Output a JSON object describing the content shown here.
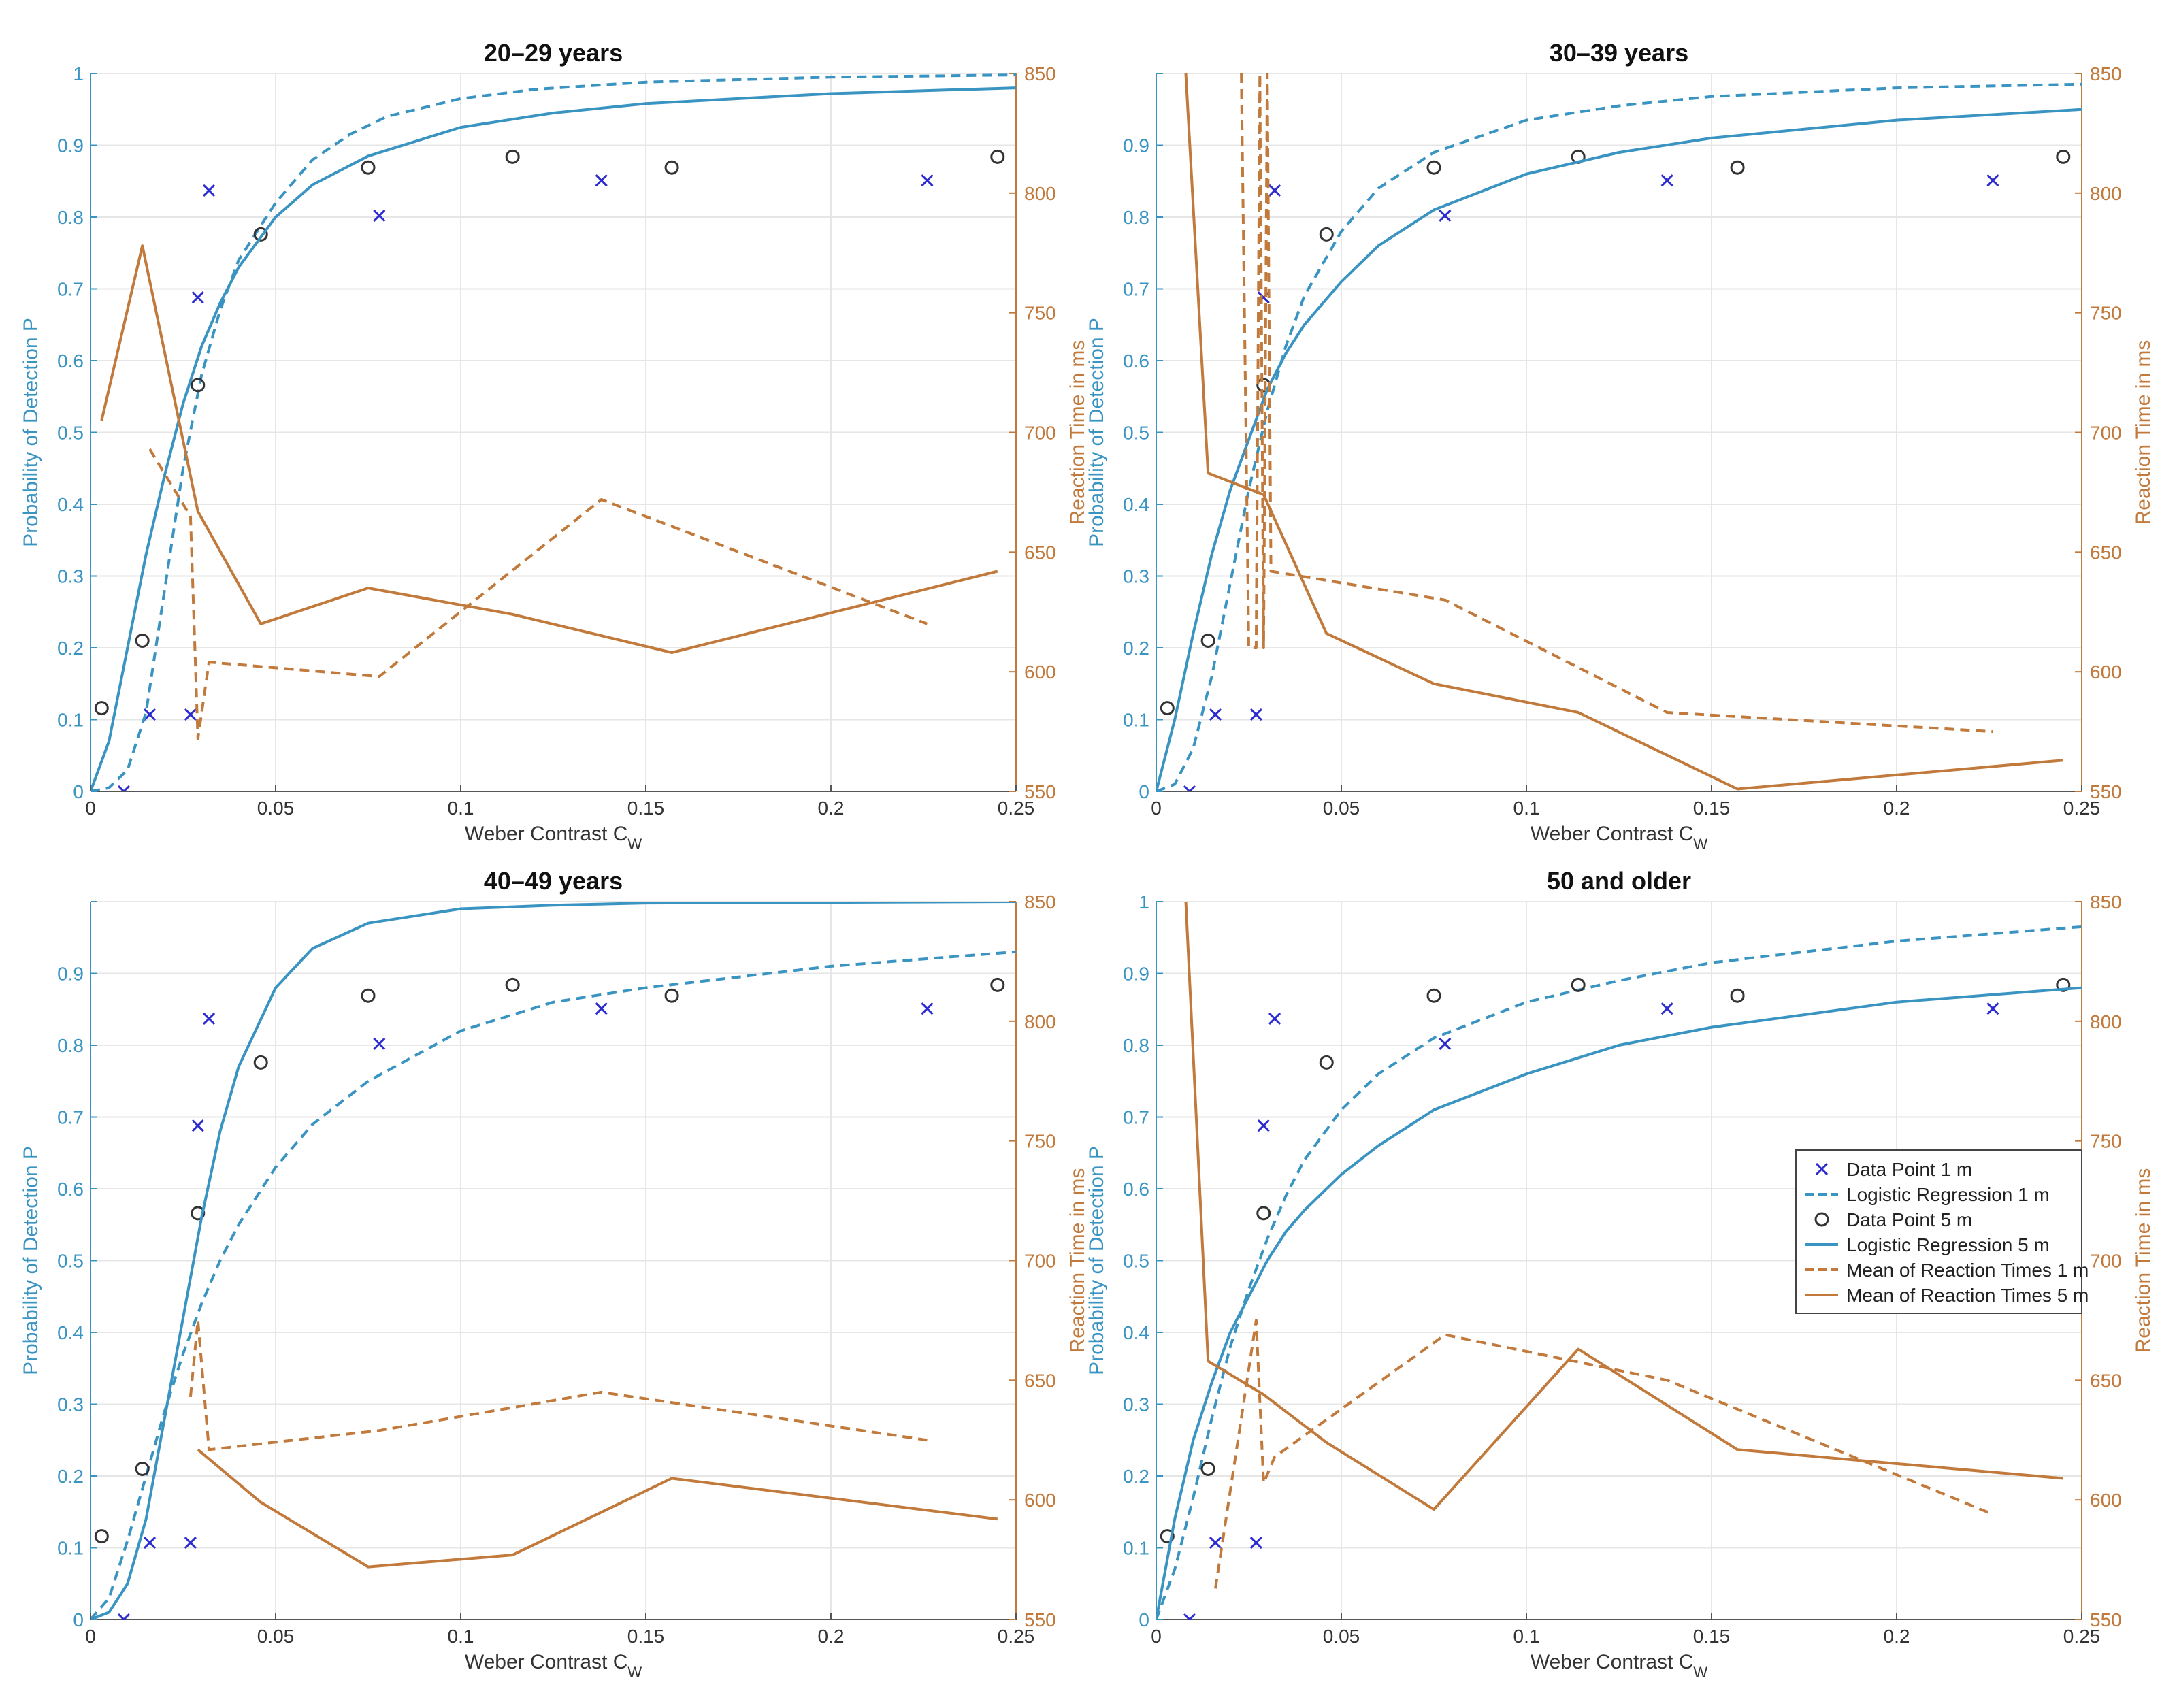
{
  "colors": {
    "prob": "#3a94c2",
    "rt": "#c17a3c",
    "marker1": "#2b2bd0",
    "marker5": "#333333",
    "grid": "#e6e6e6",
    "axis": "#555555"
  },
  "chart_data": [
    {
      "type": "line",
      "title": "20–29 years",
      "xlabel": "Weber Contrast C",
      "xlabel_sub": "W",
      "ylabel": "Probability of Detection P",
      "ylabel_right": "Reaction Time in ms",
      "xlim": [
        0,
        0.25
      ],
      "ylim": [
        0,
        1
      ],
      "ylim_right": [
        550,
        850
      ],
      "x_ticks": [
        "0",
        "0.05",
        "0.1",
        "0.15",
        "0.2",
        "0.25"
      ],
      "y_ticks": [
        "0",
        "0.1",
        "0.2",
        "0.3",
        "0.4",
        "0.5",
        "0.6",
        "0.7",
        "0.8",
        "0.9",
        "1"
      ],
      "y_ticks_right": [
        "550",
        "600",
        "650",
        "700",
        "750",
        "800",
        "850"
      ],
      "series": [
        {
          "name": "Data Point 1 m",
          "kind": "scatter-x",
          "axis": "left",
          "x": [
            0.009,
            0.016,
            0.027,
            0.029,
            0.032,
            0.078,
            0.138,
            0.226
          ],
          "y": [
            0.0,
            0.107,
            0.107,
            0.688,
            0.837,
            0.802,
            0.851,
            0.851
          ]
        },
        {
          "name": "Logistic Regression 1 m",
          "kind": "curve",
          "axis": "left",
          "dashed": true,
          "x": [
            0,
            0.005,
            0.01,
            0.015,
            0.02,
            0.025,
            0.03,
            0.035,
            0.04,
            0.05,
            0.06,
            0.07,
            0.08,
            0.1,
            0.12,
            0.15,
            0.2,
            0.25
          ],
          "y": [
            0,
            0.005,
            0.03,
            0.11,
            0.28,
            0.45,
            0.58,
            0.67,
            0.74,
            0.82,
            0.88,
            0.915,
            0.94,
            0.965,
            0.978,
            0.988,
            0.995,
            0.998
          ]
        },
        {
          "name": "Data Point 5 m",
          "kind": "scatter-o",
          "axis": "left",
          "x": [
            0.003,
            0.014,
            0.029,
            0.046,
            0.075,
            0.114,
            0.157,
            0.245
          ],
          "y": [
            0.116,
            0.21,
            0.566,
            0.776,
            0.869,
            0.884,
            0.869,
            0.884
          ]
        },
        {
          "name": "Logistic Regression 5 m",
          "kind": "curve",
          "axis": "left",
          "dashed": false,
          "x": [
            0,
            0.005,
            0.01,
            0.015,
            0.02,
            0.025,
            0.03,
            0.035,
            0.04,
            0.05,
            0.06,
            0.075,
            0.1,
            0.125,
            0.15,
            0.2,
            0.25
          ],
          "y": [
            0,
            0.07,
            0.2,
            0.33,
            0.44,
            0.54,
            0.62,
            0.68,
            0.73,
            0.8,
            0.845,
            0.885,
            0.925,
            0.945,
            0.958,
            0.972,
            0.98
          ]
        },
        {
          "name": "Mean of Reaction Times 1 m",
          "kind": "line",
          "axis": "right",
          "dashed": true,
          "x": [
            0.016,
            0.027,
            0.029,
            0.032,
            0.078,
            0.138,
            0.226
          ],
          "y": [
            693,
            665,
            572,
            604,
            598,
            672,
            620
          ]
        },
        {
          "name": "Mean of Reaction Times 5 m",
          "kind": "line",
          "axis": "right",
          "dashed": false,
          "x": [
            0.003,
            0.014,
            0.029,
            0.046,
            0.075,
            0.114,
            0.157,
            0.245
          ],
          "y": [
            705,
            778,
            667,
            620,
            635,
            624,
            608,
            642
          ]
        }
      ]
    },
    {
      "type": "line",
      "title": "30–39 years",
      "xlabel": "Weber Contrast C",
      "xlabel_sub": "W",
      "ylabel": "Probability of Detection P",
      "ylabel_right": "Reaction Time in ms",
      "xlim": [
        0,
        0.25
      ],
      "ylim": [
        0,
        1
      ],
      "ylim_right": [
        550,
        850
      ],
      "x_ticks": [
        "0",
        "0.05",
        "0.1",
        "0.15",
        "0.2",
        "0.25"
      ],
      "y_ticks": [
        "0",
        "0.1",
        "0.2",
        "0.3",
        "0.4",
        "0.5",
        "0.6",
        "0.7",
        "0.8",
        "0.9",
        ""
      ],
      "y_ticks_right": [
        "550",
        "600",
        "650",
        "700",
        "750",
        "800",
        "850"
      ],
      "series": [
        {
          "name": "Data Point 1 m",
          "kind": "scatter-x",
          "axis": "left",
          "x": [
            0.009,
            0.016,
            0.027,
            0.029,
            0.032,
            0.078,
            0.138,
            0.226
          ],
          "y": [
            0.0,
            0.107,
            0.107,
            0.688,
            0.837,
            0.802,
            0.851,
            0.851
          ]
        },
        {
          "name": "Logistic Regression 1 m",
          "kind": "curve",
          "axis": "left",
          "dashed": true,
          "x": [
            0,
            0.005,
            0.01,
            0.015,
            0.02,
            0.025,
            0.03,
            0.035,
            0.04,
            0.05,
            0.06,
            0.075,
            0.1,
            0.125,
            0.15,
            0.2,
            0.25
          ],
          "y": [
            0,
            0.01,
            0.06,
            0.16,
            0.29,
            0.42,
            0.53,
            0.62,
            0.69,
            0.78,
            0.84,
            0.89,
            0.935,
            0.955,
            0.968,
            0.98,
            0.985
          ]
        },
        {
          "name": "Data Point 5 m",
          "kind": "scatter-o",
          "axis": "left",
          "x": [
            0.003,
            0.014,
            0.029,
            0.046,
            0.075,
            0.114,
            0.157,
            0.245
          ],
          "y": [
            0.116,
            0.21,
            0.566,
            0.776,
            0.869,
            0.884,
            0.869,
            0.884
          ]
        },
        {
          "name": "Logistic Regression 5 m",
          "kind": "curve",
          "axis": "left",
          "dashed": false,
          "x": [
            0,
            0.005,
            0.01,
            0.015,
            0.02,
            0.025,
            0.03,
            0.035,
            0.04,
            0.05,
            0.06,
            0.075,
            0.1,
            0.125,
            0.15,
            0.2,
            0.25
          ],
          "y": [
            0,
            0.1,
            0.22,
            0.33,
            0.42,
            0.49,
            0.56,
            0.61,
            0.65,
            0.71,
            0.76,
            0.81,
            0.86,
            0.89,
            0.91,
            0.935,
            0.95
          ]
        },
        {
          "name": "Mean of Reaction Times 1 m",
          "kind": "line",
          "axis": "right",
          "dashed": true,
          "x": [
            0.023,
            0.025,
            0.026,
            0.027,
            0.028,
            0.029,
            0.03,
            0.031,
            0.078,
            0.138,
            0.226
          ],
          "y": [
            850,
            610,
            610,
            610,
            850,
            610,
            850,
            642,
            630,
            583,
            575
          ]
        },
        {
          "name": "Mean of Reaction Times 5 m",
          "kind": "line",
          "axis": "right",
          "dashed": false,
          "x": [
            0.008,
            0.014,
            0.029,
            0.046,
            0.075,
            0.114,
            0.157,
            0.245
          ],
          "y": [
            850,
            683,
            674,
            616,
            595,
            583,
            551,
            563
          ]
        }
      ]
    },
    {
      "type": "line",
      "title": "40–49 years",
      "xlabel": "Weber Contrast C",
      "xlabel_sub": "W",
      "ylabel": "Probability of Detection P",
      "ylabel_right": "Reaction Time in ms",
      "xlim": [
        0,
        0.25
      ],
      "ylim": [
        0,
        1
      ],
      "ylim_right": [
        550,
        850
      ],
      "x_ticks": [
        "0",
        "0.05",
        "0.1",
        "0.15",
        "0.2",
        "0.25"
      ],
      "y_ticks": [
        "0",
        "0.1",
        "0.2",
        "0.3",
        "0.4",
        "0.5",
        "0.6",
        "0.7",
        "0.8",
        "0.9",
        ""
      ],
      "y_ticks_right": [
        "550",
        "600",
        "650",
        "700",
        "750",
        "800",
        "850"
      ],
      "series": [
        {
          "name": "Data Point 1 m",
          "kind": "scatter-x",
          "axis": "left",
          "x": [
            0.009,
            0.016,
            0.027,
            0.029,
            0.032,
            0.078,
            0.138,
            0.226
          ],
          "y": [
            0.0,
            0.107,
            0.107,
            0.688,
            0.837,
            0.802,
            0.851,
            0.851
          ]
        },
        {
          "name": "Logistic Regression 1 m",
          "kind": "curve",
          "axis": "left",
          "dashed": true,
          "x": [
            0,
            0.005,
            0.01,
            0.015,
            0.02,
            0.025,
            0.03,
            0.035,
            0.04,
            0.05,
            0.06,
            0.075,
            0.1,
            0.125,
            0.15,
            0.2,
            0.25
          ],
          "y": [
            0,
            0.03,
            0.11,
            0.2,
            0.29,
            0.37,
            0.44,
            0.5,
            0.55,
            0.63,
            0.69,
            0.75,
            0.82,
            0.86,
            0.88,
            0.91,
            0.93
          ]
        },
        {
          "name": "Data Point 5 m",
          "kind": "scatter-o",
          "axis": "left",
          "x": [
            0.003,
            0.014,
            0.029,
            0.046,
            0.075,
            0.114,
            0.157,
            0.245
          ],
          "y": [
            0.116,
            0.21,
            0.566,
            0.776,
            0.869,
            0.884,
            0.869,
            0.884
          ]
        },
        {
          "name": "Logistic Regression 5 m",
          "kind": "curve",
          "axis": "left",
          "dashed": false,
          "x": [
            0,
            0.005,
            0.01,
            0.015,
            0.02,
            0.025,
            0.03,
            0.035,
            0.04,
            0.05,
            0.06,
            0.075,
            0.1,
            0.125,
            0.15,
            0.2,
            0.25
          ],
          "y": [
            0,
            0.01,
            0.05,
            0.14,
            0.28,
            0.42,
            0.56,
            0.68,
            0.77,
            0.88,
            0.935,
            0.97,
            0.99,
            0.995,
            0.998,
            0.999,
            1.0
          ]
        },
        {
          "name": "Mean of Reaction Times 1 m",
          "kind": "line",
          "axis": "right",
          "dashed": true,
          "x": [
            0.027,
            0.029,
            0.032,
            0.078,
            0.138,
            0.226
          ],
          "y": [
            643,
            675,
            621,
            629,
            645,
            625
          ]
        },
        {
          "name": "Mean of Reaction Times 5 m",
          "kind": "line",
          "axis": "right",
          "dashed": false,
          "x": [
            0.029,
            0.046,
            0.075,
            0.114,
            0.157,
            0.245
          ],
          "y": [
            621,
            599,
            572,
            577,
            609,
            592
          ]
        }
      ]
    },
    {
      "type": "line",
      "title": "50 and older",
      "xlabel": "Weber Contrast C",
      "xlabel_sub": "W",
      "ylabel": "Probability of Detection P",
      "ylabel_right": "Reaction Time in ms",
      "xlim": [
        0,
        0.25
      ],
      "ylim": [
        0,
        1
      ],
      "ylim_right": [
        550,
        850
      ],
      "x_ticks": [
        "0",
        "0.05",
        "0.1",
        "0.15",
        "0.2",
        "0.25"
      ],
      "y_ticks": [
        "0",
        "0.1",
        "0.2",
        "0.3",
        "0.4",
        "0.5",
        "0.6",
        "0.7",
        "0.8",
        "0.9",
        "1"
      ],
      "y_ticks_right": [
        "550",
        "600",
        "650",
        "700",
        "750",
        "800",
        "850"
      ],
      "legend_position": "middle-right",
      "series": [
        {
          "name": "Data Point 1 m",
          "kind": "scatter-x",
          "axis": "left",
          "x": [
            0.009,
            0.016,
            0.027,
            0.029,
            0.032,
            0.078,
            0.138,
            0.226
          ],
          "y": [
            0.0,
            0.107,
            0.107,
            0.688,
            0.837,
            0.802,
            0.851,
            0.851
          ]
        },
        {
          "name": "Logistic Regression 1 m",
          "kind": "curve",
          "axis": "left",
          "dashed": true,
          "x": [
            0,
            0.005,
            0.01,
            0.015,
            0.02,
            0.025,
            0.03,
            0.035,
            0.04,
            0.05,
            0.06,
            0.075,
            0.1,
            0.125,
            0.15,
            0.2,
            0.25
          ],
          "y": [
            0,
            0.07,
            0.17,
            0.28,
            0.38,
            0.46,
            0.53,
            0.59,
            0.64,
            0.71,
            0.76,
            0.81,
            0.86,
            0.89,
            0.915,
            0.945,
            0.965
          ]
        },
        {
          "name": "Data Point 5 m",
          "kind": "scatter-o",
          "axis": "left",
          "x": [
            0.003,
            0.014,
            0.029,
            0.046,
            0.075,
            0.114,
            0.157,
            0.245
          ],
          "y": [
            0.116,
            0.21,
            0.566,
            0.776,
            0.869,
            0.884,
            0.869,
            0.884
          ]
        },
        {
          "name": "Logistic Regression 5 m",
          "kind": "curve",
          "axis": "left",
          "dashed": false,
          "x": [
            0,
            0.005,
            0.01,
            0.015,
            0.02,
            0.025,
            0.03,
            0.035,
            0.04,
            0.05,
            0.06,
            0.075,
            0.1,
            0.125,
            0.15,
            0.2,
            0.25
          ],
          "y": [
            0,
            0.14,
            0.25,
            0.33,
            0.4,
            0.45,
            0.5,
            0.54,
            0.57,
            0.62,
            0.66,
            0.71,
            0.76,
            0.8,
            0.825,
            0.86,
            0.88
          ]
        },
        {
          "name": "Mean of Reaction Times 1 m",
          "kind": "line",
          "axis": "right",
          "dashed": true,
          "x": [
            0.016,
            0.027,
            0.029,
            0.032,
            0.078,
            0.138,
            0.226
          ],
          "y": [
            563,
            675,
            607,
            618,
            669,
            650,
            594
          ]
        },
        {
          "name": "Mean of Reaction Times 5 m",
          "kind": "line",
          "axis": "right",
          "dashed": false,
          "x": [
            0.008,
            0.014,
            0.029,
            0.046,
            0.075,
            0.114,
            0.157,
            0.245
          ],
          "y": [
            850,
            658,
            644,
            624,
            596,
            663,
            621,
            609
          ]
        }
      ]
    }
  ],
  "legend": {
    "items": [
      {
        "label": "Data Point 1 m",
        "kind": "scatter-x"
      },
      {
        "label": "Logistic Regression 1 m",
        "kind": "prob-dashed"
      },
      {
        "label": "Data Point 5 m",
        "kind": "scatter-o"
      },
      {
        "label": "Logistic Regression 5 m",
        "kind": "prob-solid"
      },
      {
        "label": "Mean of Reaction Times 1 m",
        "kind": "rt-dashed"
      },
      {
        "label": "Mean of Reaction Times 5 m",
        "kind": "rt-solid"
      }
    ]
  }
}
